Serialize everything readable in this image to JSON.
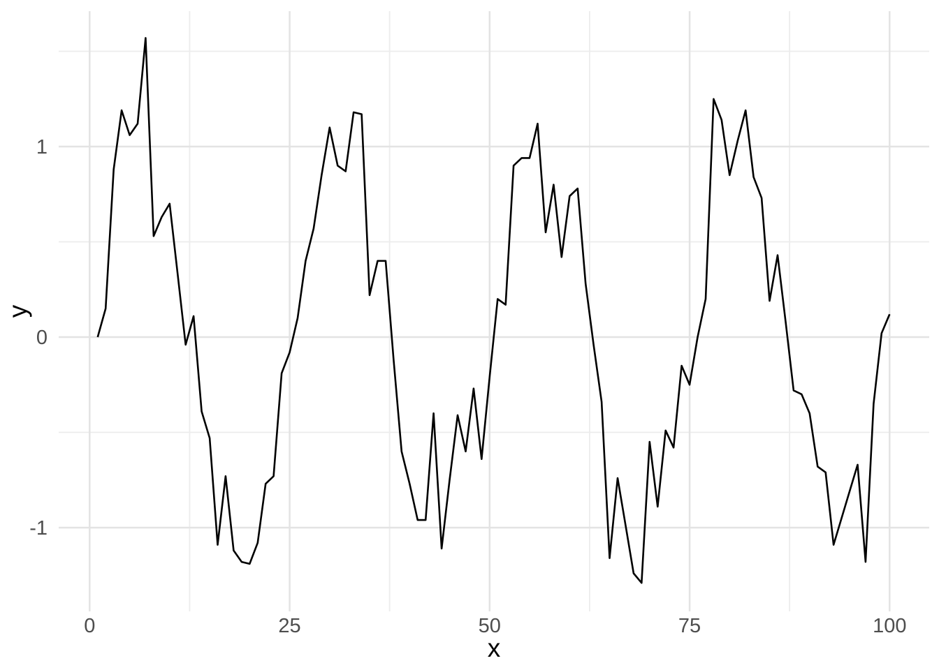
{
  "chart_data": {
    "type": "line",
    "title": "",
    "xlabel": "x",
    "ylabel": "y",
    "x_ticks": [
      0,
      25,
      50,
      75,
      100
    ],
    "y_ticks": [
      1,
      0,
      -1
    ],
    "x_minor_gridlines": [
      12.5,
      37.5,
      62.5,
      87.5
    ],
    "y_minor_gridlines": [
      1.5,
      0.5,
      -0.5
    ],
    "xlim": [
      -4,
      105
    ],
    "ylim": [
      -1.44,
      1.71
    ],
    "grid": true,
    "legend": "none",
    "line_color": "#000000",
    "major_grid_color": "#e3e3e3",
    "minor_grid_color": "#ececec",
    "tick_label_color": "#4d4d4d",
    "axis_title_color": "#000000",
    "background_color": "#ffffff",
    "series": [
      {
        "name": "y",
        "x": [
          1,
          2,
          3,
          4,
          5,
          6,
          7,
          8,
          9,
          10,
          11,
          12,
          13,
          14,
          15,
          16,
          17,
          18,
          19,
          20,
          21,
          22,
          23,
          24,
          25,
          26,
          27,
          28,
          29,
          30,
          31,
          32,
          33,
          34,
          35,
          36,
          37,
          38,
          39,
          40,
          41,
          42,
          43,
          44,
          45,
          46,
          47,
          48,
          49,
          50,
          51,
          52,
          53,
          54,
          55,
          56,
          57,
          58,
          59,
          60,
          61,
          62,
          63,
          64,
          65,
          66,
          67,
          68,
          69,
          70,
          71,
          72,
          73,
          74,
          75,
          76,
          77,
          78,
          79,
          80,
          81,
          82,
          83,
          84,
          85,
          86,
          87,
          88,
          89,
          90,
          91,
          92,
          93,
          94,
          95,
          96,
          97,
          98,
          99,
          100
        ],
        "y": [
          0.0,
          0.15,
          0.88,
          1.19,
          1.06,
          1.12,
          1.57,
          0.53,
          0.63,
          0.7,
          0.33,
          -0.04,
          0.11,
          -0.39,
          -0.53,
          -1.09,
          -0.73,
          -1.12,
          -1.18,
          -1.19,
          -1.08,
          -0.77,
          -0.73,
          -0.19,
          -0.08,
          0.1,
          0.4,
          0.57,
          0.85,
          1.1,
          0.9,
          0.87,
          1.18,
          1.17,
          0.22,
          0.4,
          0.4,
          -0.12,
          -0.6,
          -0.77,
          -0.96,
          -0.96,
          -0.4,
          -1.11,
          -0.75,
          -0.41,
          -0.6,
          -0.27,
          -0.64,
          -0.21,
          0.2,
          0.17,
          0.9,
          0.94,
          0.94,
          1.12,
          0.55,
          0.8,
          0.42,
          0.74,
          0.78,
          0.28,
          -0.04,
          -0.34,
          -1.16,
          -0.74,
          -0.99,
          -1.24,
          -1.29,
          -0.55,
          -0.89,
          -0.49,
          -0.58,
          -0.15,
          -0.25,
          0.0,
          0.2,
          1.25,
          1.14,
          0.85,
          1.03,
          1.19,
          0.84,
          0.73,
          0.19,
          0.43,
          0.08,
          -0.28,
          -0.3,
          -0.4,
          -0.68,
          -0.71,
          -1.09,
          -0.95,
          -0.81,
          -0.67,
          -1.18,
          -0.35,
          0.02,
          0.12
        ]
      }
    ]
  }
}
